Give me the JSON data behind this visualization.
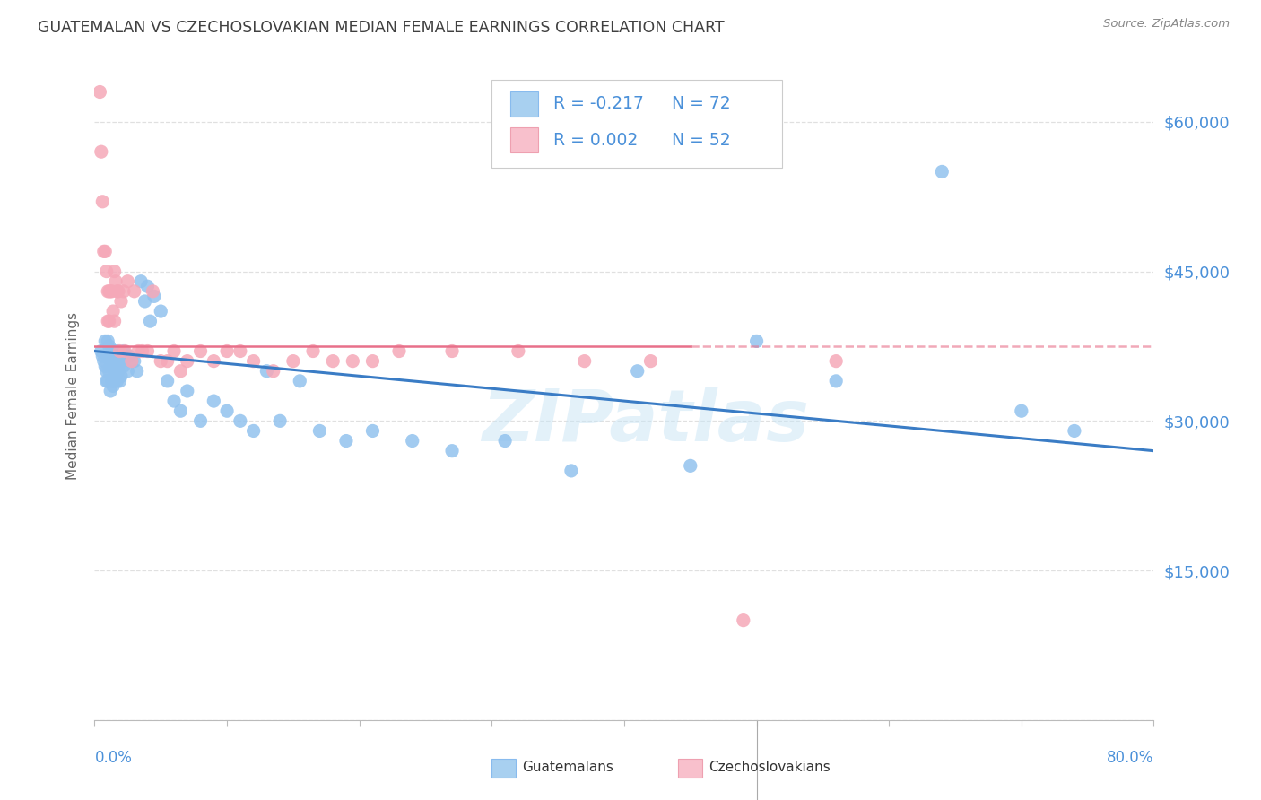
{
  "title": "GUATEMALAN VS CZECHOSLOVAKIAN MEDIAN FEMALE EARNINGS CORRELATION CHART",
  "source": "Source: ZipAtlas.com",
  "ylabel": "Median Female Earnings",
  "yticks": [
    0,
    15000,
    30000,
    45000,
    60000
  ],
  "ytick_labels": [
    "",
    "$15,000",
    "$30,000",
    "$45,000",
    "$60,000"
  ],
  "xlim": [
    0.0,
    0.8
  ],
  "ylim": [
    0,
    65000
  ],
  "watermark": "ZIPatlas",
  "legend_r1": "R = -0.217",
  "legend_n1": "N = 72",
  "legend_r2": "R = 0.002",
  "legend_n2": "N = 52",
  "blue_dot_color": "#92C2EE",
  "pink_dot_color": "#F5A8B8",
  "blue_line_color": "#3A7CC5",
  "pink_line_color": "#E8708A",
  "blue_legend_color": "#A8D0F0",
  "pink_legend_color": "#F8C0CC",
  "legend_text_dark": "#333333",
  "legend_text_blue": "#4A90D9",
  "title_color": "#404040",
  "source_color": "#888888",
  "axis_label_color": "#666666",
  "yaxis_label_color": "#4A90D9",
  "grid_color": "#e0e0e0",
  "guatemalan_x": [
    0.005,
    0.006,
    0.007,
    0.008,
    0.008,
    0.009,
    0.009,
    0.01,
    0.01,
    0.01,
    0.011,
    0.011,
    0.012,
    0.012,
    0.013,
    0.013,
    0.013,
    0.014,
    0.014,
    0.015,
    0.015,
    0.015,
    0.016,
    0.016,
    0.017,
    0.017,
    0.018,
    0.018,
    0.019,
    0.019,
    0.02,
    0.02,
    0.022,
    0.022,
    0.023,
    0.025,
    0.026,
    0.028,
    0.03,
    0.032,
    0.035,
    0.038,
    0.04,
    0.042,
    0.045,
    0.05,
    0.055,
    0.06,
    0.065,
    0.07,
    0.08,
    0.09,
    0.1,
    0.11,
    0.12,
    0.13,
    0.14,
    0.155,
    0.17,
    0.19,
    0.21,
    0.24,
    0.27,
    0.31,
    0.36,
    0.41,
    0.45,
    0.5,
    0.56,
    0.64,
    0.7,
    0.74
  ],
  "guatemalan_y": [
    37000,
    36500,
    36000,
    38000,
    35500,
    35000,
    34000,
    38000,
    36500,
    34000,
    37500,
    35000,
    36000,
    33000,
    37000,
    35500,
    34000,
    36000,
    33500,
    37000,
    35000,
    34000,
    36500,
    34500,
    36000,
    34000,
    37000,
    35000,
    36000,
    34000,
    36000,
    34500,
    37000,
    35500,
    36500,
    35000,
    36500,
    36000,
    36000,
    35000,
    44000,
    42000,
    43500,
    40000,
    42500,
    41000,
    34000,
    32000,
    31000,
    33000,
    30000,
    32000,
    31000,
    30000,
    29000,
    35000,
    30000,
    34000,
    29000,
    28000,
    29000,
    28000,
    27000,
    28000,
    25000,
    35000,
    25500,
    38000,
    34000,
    55000,
    31000,
    29000
  ],
  "czechoslovakian_x": [
    0.004,
    0.005,
    0.006,
    0.007,
    0.008,
    0.009,
    0.01,
    0.01,
    0.011,
    0.011,
    0.012,
    0.013,
    0.014,
    0.015,
    0.015,
    0.016,
    0.017,
    0.018,
    0.019,
    0.02,
    0.022,
    0.023,
    0.025,
    0.028,
    0.03,
    0.033,
    0.036,
    0.04,
    0.044,
    0.05,
    0.055,
    0.06,
    0.065,
    0.07,
    0.08,
    0.09,
    0.1,
    0.11,
    0.12,
    0.135,
    0.15,
    0.165,
    0.18,
    0.195,
    0.21,
    0.23,
    0.27,
    0.32,
    0.37,
    0.42,
    0.49,
    0.56
  ],
  "czechoslovakian_y": [
    63000,
    57000,
    52000,
    47000,
    47000,
    45000,
    43000,
    40000,
    43000,
    40000,
    43000,
    43000,
    41000,
    45000,
    40000,
    44000,
    43000,
    43000,
    37000,
    42000,
    43000,
    37000,
    44000,
    36000,
    43000,
    37000,
    37000,
    37000,
    43000,
    36000,
    36000,
    37000,
    35000,
    36000,
    37000,
    36000,
    37000,
    37000,
    36000,
    35000,
    36000,
    37000,
    36000,
    36000,
    36000,
    37000,
    37000,
    37000,
    36000,
    36000,
    10000,
    36000
  ]
}
